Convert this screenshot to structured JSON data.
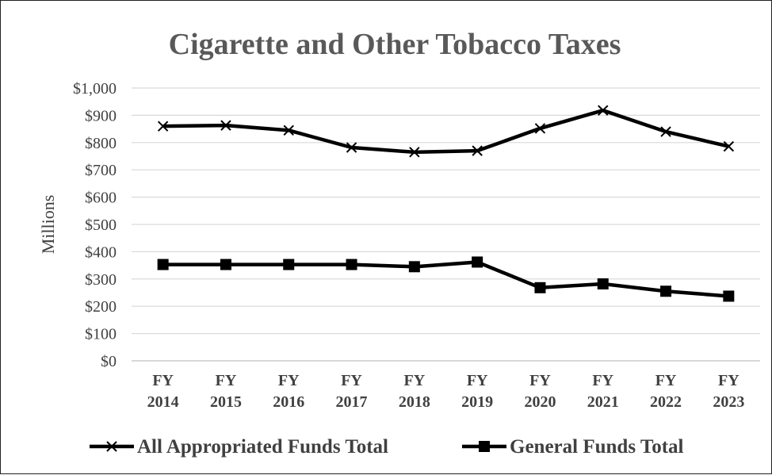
{
  "chart_data": {
    "type": "line",
    "title": "Cigarette and Other Tobacco Taxes",
    "ylabel": "Millions",
    "xlabel": "",
    "categories": [
      [
        "FY",
        "2014"
      ],
      [
        "FY",
        "2015"
      ],
      [
        "FY",
        "2016"
      ],
      [
        "FY",
        "2017"
      ],
      [
        "FY",
        "2018"
      ],
      [
        "FY",
        "2019"
      ],
      [
        "FY",
        "2020"
      ],
      [
        "FY",
        "2021"
      ],
      [
        "FY",
        "2022"
      ],
      [
        "FY",
        "2023"
      ]
    ],
    "ylim": [
      0,
      1000
    ],
    "yticks": [
      0,
      100,
      200,
      300,
      400,
      500,
      600,
      700,
      800,
      900,
      1000
    ],
    "ytick_labels": [
      "$0",
      "$100",
      "$200",
      "$300",
      "$400",
      "$500",
      "$600",
      "$700",
      "$800",
      "$900",
      "$1,000"
    ],
    "grid": true,
    "legend_position": "bottom",
    "series": [
      {
        "name": "All Appropriated Funds Total",
        "marker": "x",
        "color": "#000000",
        "values": [
          860,
          863,
          845,
          782,
          765,
          770,
          852,
          918,
          840,
          786
        ]
      },
      {
        "name": "General Funds Total",
        "marker": "square",
        "color": "#000000",
        "values": [
          353,
          353,
          353,
          353,
          345,
          362,
          268,
          282,
          255,
          237
        ]
      }
    ]
  }
}
